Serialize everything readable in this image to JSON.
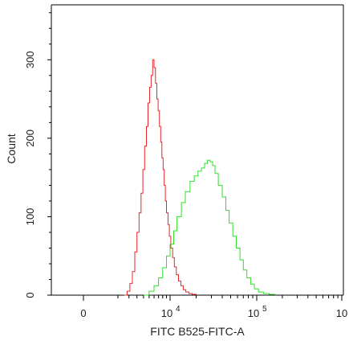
{
  "chart_data": {
    "type": "line",
    "xlabel": "FITC B525-FITC-A",
    "ylabel": "Count",
    "ylim": [
      0,
      370
    ],
    "x_scale": "biexponential",
    "x_ticks": [
      {
        "value": 0,
        "label": "0",
        "sup": ""
      },
      {
        "value": 10000,
        "label": "10",
        "sup": "4"
      },
      {
        "value": 100000,
        "label": "10",
        "sup": "5"
      },
      {
        "value": 1000000,
        "label": "10",
        "sup": ""
      }
    ],
    "y_ticks": [
      {
        "value": 0,
        "label": "0"
      },
      {
        "value": 100,
        "label": "100"
      },
      {
        "value": 200,
        "label": "200"
      },
      {
        "value": 300,
        "label": "300"
      }
    ],
    "grid": false,
    "series": [
      {
        "color": "#e8262b",
        "x": [
          1500,
          1800,
          2100,
          2400,
          2700,
          3000,
          3300,
          3600,
          3900,
          4200,
          4500,
          4800,
          5100,
          5400,
          5700,
          6000,
          6300,
          6600,
          6900,
          7200,
          7500,
          7800,
          8100,
          8400,
          8700,
          9000,
          9400,
          9800,
          10200,
          10700,
          11200,
          11800,
          12500,
          13300,
          14200,
          15200,
          16500,
          18000,
          20000
        ],
        "y": [
          0,
          5,
          15,
          30,
          55,
          80,
          105,
          130,
          160,
          190,
          215,
          245,
          265,
          280,
          300,
          290,
          270,
          250,
          235,
          215,
          195,
          175,
          160,
          140,
          120,
          105,
          90,
          75,
          60,
          48,
          36,
          26,
          18,
          12,
          7,
          4,
          2,
          1,
          0
        ]
      },
      {
        "color": "#2fe02a",
        "x": [
          4000,
          5000,
          6000,
          7000,
          8000,
          9000,
          10000,
          11000,
          12000,
          13500,
          15000,
          17000,
          19000,
          21000,
          23000,
          25000,
          27000,
          29000,
          31000,
          33000,
          36000,
          40000,
          44000,
          48000,
          53000,
          58000,
          64000,
          70000,
          77000,
          85000,
          94000,
          105000,
          120000,
          140000,
          165000
        ],
        "y": [
          0,
          5,
          12,
          22,
          35,
          50,
          65,
          82,
          100,
          118,
          132,
          145,
          152,
          158,
          162,
          168,
          172,
          170,
          165,
          155,
          140,
          125,
          108,
          92,
          75,
          60,
          45,
          32,
          22,
          14,
          8,
          4,
          2,
          1,
          0
        ]
      }
    ]
  }
}
